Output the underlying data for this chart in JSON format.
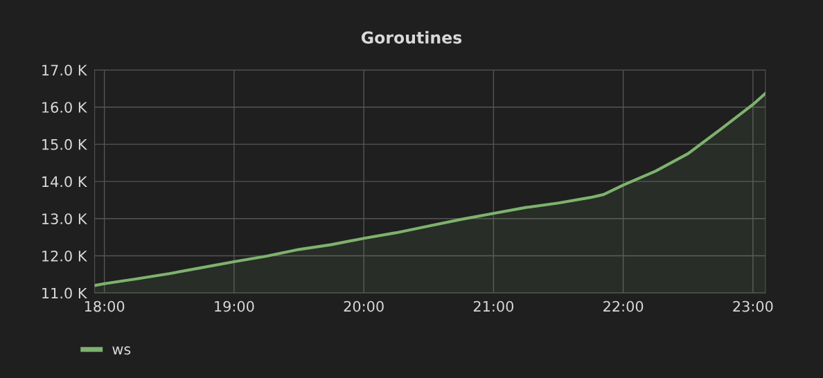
{
  "chart_data": {
    "type": "area",
    "title": "Goroutines",
    "x": [
      17.925,
      18.0,
      18.25,
      18.5,
      18.75,
      19.0,
      19.25,
      19.5,
      19.75,
      20.0,
      20.25,
      20.5,
      20.75,
      21.0,
      21.25,
      21.5,
      21.75,
      21.85,
      22.0,
      22.25,
      22.5,
      22.75,
      23.0,
      23.096
    ],
    "series": [
      {
        "name": "ws",
        "color": "#7eb26d",
        "values": [
          11200,
          11250,
          11380,
          11520,
          11680,
          11840,
          11990,
          12170,
          12300,
          12470,
          12620,
          12800,
          12980,
          13140,
          13300,
          13420,
          13570,
          13650,
          13900,
          14280,
          14750,
          15400,
          16070,
          16370
        ]
      }
    ],
    "xlim": [
      17.925,
      23.096
    ],
    "xticks": [
      {
        "value": 18,
        "label": "18:00"
      },
      {
        "value": 19,
        "label": "19:00"
      },
      {
        "value": 20,
        "label": "20:00"
      },
      {
        "value": 21,
        "label": "21:00"
      },
      {
        "value": 22,
        "label": "22:00"
      },
      {
        "value": 23,
        "label": "23:00"
      }
    ],
    "ylim": [
      11000,
      17000
    ],
    "yticks": [
      {
        "value": 11000,
        "label": "11.0 K"
      },
      {
        "value": 12000,
        "label": "12.0 K"
      },
      {
        "value": 13000,
        "label": "13.0 K"
      },
      {
        "value": 14000,
        "label": "14.0 K"
      },
      {
        "value": 15000,
        "label": "15.0 K"
      },
      {
        "value": 16000,
        "label": "16.0 K"
      },
      {
        "value": 17000,
        "label": "17.0 K"
      }
    ],
    "grid": true,
    "legend": "bottom left"
  }
}
